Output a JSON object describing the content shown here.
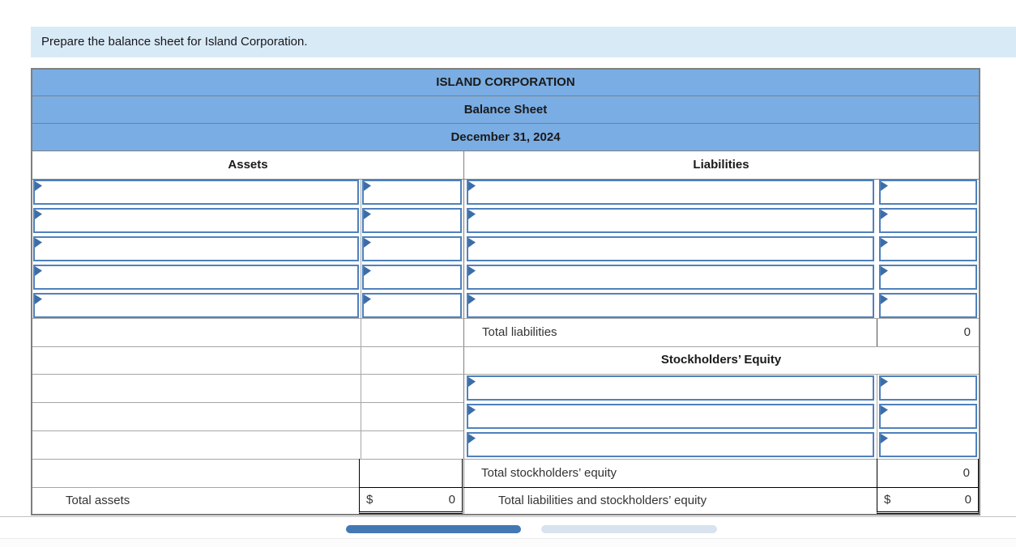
{
  "instruction": "Prepare the balance sheet for Island Corporation.",
  "statement": {
    "company": "ISLAND CORPORATION",
    "title": "Balance Sheet",
    "date": "December 31, 2024"
  },
  "sections": {
    "assets": {
      "header": "Assets",
      "input_rows": 5,
      "total_label": "Total assets",
      "total_currency": "$",
      "total_value": "0"
    },
    "liabilities": {
      "header": "Liabilities",
      "input_rows": 5,
      "total_label": "Total liabilities",
      "total_value": "0"
    },
    "equity": {
      "header": "Stockholders’ Equity",
      "input_rows": 3,
      "total_label": "Total stockholders’ equity",
      "total_value": "0"
    },
    "grand_total": {
      "label": "Total liabilities and stockholders’ equity",
      "currency": "$",
      "value": "0"
    }
  },
  "icons": {
    "dropdown_marker": "triangle-right-icon"
  },
  "colors": {
    "banner_bg": "#d9eaf7",
    "header_bg": "#7aade3",
    "input_border": "#4f81bd",
    "marker": "#3c6da8",
    "scrollbar_active": "#4478b5",
    "scrollbar_inactive": "#d8e3ef"
  }
}
